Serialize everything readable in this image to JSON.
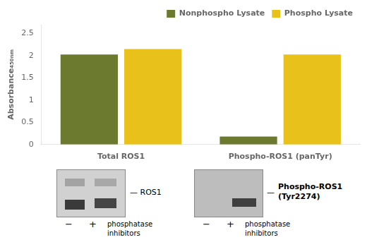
{
  "chart_data": {
    "type": "bar",
    "ylabel": "Absorbance₄₅₀ₙₘ",
    "categories": [
      "Total ROS1",
      "Phospho-ROS1 (panTyr)"
    ],
    "series": [
      {
        "name": "Nonphospho Lysate",
        "color": "#6b7a2e",
        "values": [
          2.03,
          0.18
        ]
      },
      {
        "name": "Phospho Lysate",
        "color": "#e8c21a",
        "values": [
          2.15,
          2.03
        ]
      }
    ],
    "ylim": [
      0,
      2.7
    ],
    "yticks": [
      0,
      0.5,
      1,
      1.5,
      2,
      2.5
    ],
    "grid": false,
    "legend": "upper right",
    "annotations": [
      "— ROS1",
      "−",
      "+",
      "phosphatase\ninhibitors",
      "—",
      "Phospho-ROS1",
      "(Tyr2274)",
      "−",
      "+",
      "phosphatase\ninhibitors"
    ]
  }
}
